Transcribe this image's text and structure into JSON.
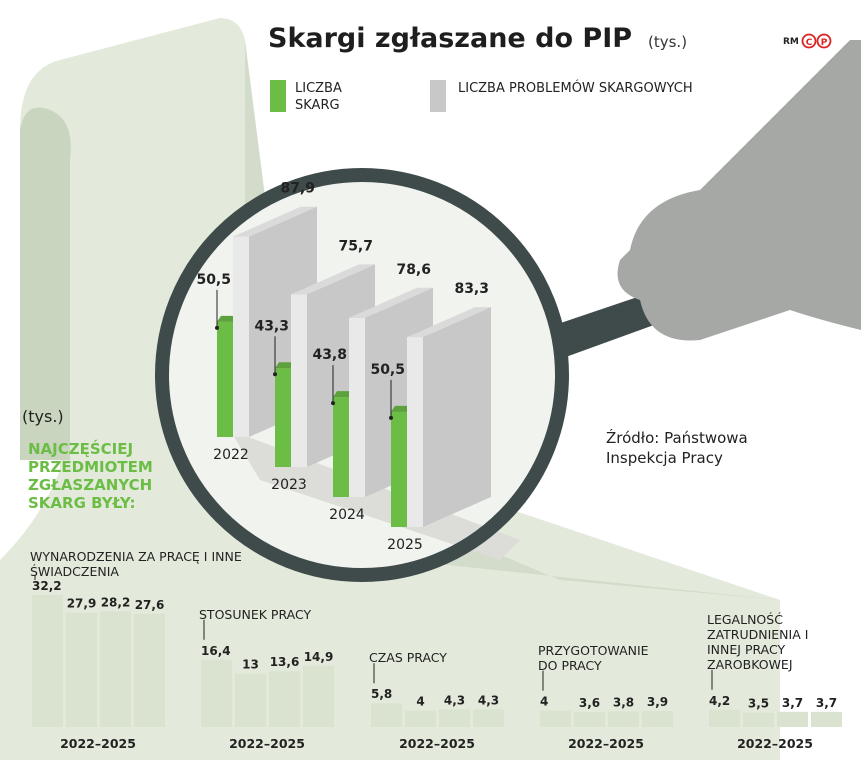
{
  "header": {
    "title": "Skargi zgłaszane do PIP",
    "unit": "(tys.)",
    "logo": "RM",
    "logo_marks": [
      "C",
      "P"
    ]
  },
  "source": "Źródło: Państwowa Inspekcja Pracy",
  "subsection": {
    "unit": "(tys.)",
    "heading": "NAJCZĘŚCIEJ PRZEDMIOTEM ZGŁASZANYCH SKARG BYŁY:"
  },
  "chart_data": [
    {
      "type": "bar3d",
      "categories": [
        "2022",
        "2023",
        "2024",
        "2025"
      ],
      "series": [
        {
          "name": "LICZBA SKARG",
          "color": "#6cbd45",
          "values": [
            50.5,
            43.3,
            43.8,
            50.5
          ],
          "value_labels": [
            "50,5",
            "43,3",
            "43,8",
            "50,5"
          ]
        },
        {
          "name": "LICZBA PROBLEMÓW SKARGOWYCH",
          "color": "#c8c8c8",
          "values": [
            87.9,
            75.7,
            78.6,
            83.3
          ],
          "value_labels": [
            "87,9",
            "75,7",
            "78,6",
            "83,3"
          ]
        }
      ]
    },
    {
      "type": "bar",
      "title": "WYNARODZENIA ZA PRACĘ I INNE ŚWIADCZENIA",
      "values": [
        32.2,
        27.9,
        28.2,
        27.6
      ],
      "value_labels": [
        "32,2",
        "27,9",
        "28,2",
        "27,6"
      ],
      "period": "2022–2025",
      "color": "#d9e3d0"
    },
    {
      "type": "bar",
      "title": "STOSUNEK PRACY",
      "values": [
        16.4,
        13,
        13.6,
        14.9
      ],
      "value_labels": [
        "16,4",
        "13",
        "13,6",
        "14,9"
      ],
      "period": "2022–2025",
      "color": "#d9e3d0"
    },
    {
      "type": "bar",
      "title": "CZAS PRACY",
      "values": [
        5.8,
        4,
        4.3,
        4.3
      ],
      "value_labels": [
        "5,8",
        "4",
        "4,3",
        "4,3"
      ],
      "period": "2022–2025",
      "color": "#d9e3d0"
    },
    {
      "type": "bar",
      "title": "PRZYGOTOWANIE DO PRACY",
      "values": [
        4,
        3.6,
        3.8,
        3.9
      ],
      "value_labels": [
        "4",
        "3,6",
        "3,8",
        "3,9"
      ],
      "period": "2022–2025",
      "color": "#d9e3d0"
    },
    {
      "type": "bar",
      "title": "LEGALNOŚĆ ZATRUDNIENIA I INNEJ PRACY ZAROBKOWEJ",
      "values": [
        4.2,
        3.5,
        3.7,
        3.7
      ],
      "value_labels": [
        "4,2",
        "3,5",
        "3,7",
        "3,7"
      ],
      "period": "2022–2025",
      "color": "#d9e3d0"
    }
  ]
}
